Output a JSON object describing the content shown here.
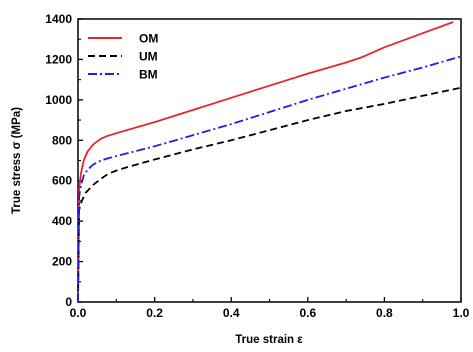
{
  "chart_data": {
    "type": "line",
    "xlabel": "True strain ε",
    "ylabel": "True stress σ (MPa)",
    "xlim": [
      0.0,
      1.0
    ],
    "ylim": [
      0,
      1400
    ],
    "x_ticks": [
      "0.0",
      "0.2",
      "0.4",
      "0.6",
      "0.8",
      "1.0"
    ],
    "y_ticks": [
      "0",
      "200",
      "400",
      "600",
      "800",
      "1000",
      "1200",
      "1400"
    ],
    "grid": false,
    "legend_position": "top-left",
    "series": [
      {
        "name": "OM",
        "color": "#e8262a",
        "dash": "solid",
        "x": [
          0.0,
          0.003,
          0.008,
          0.015,
          0.025,
          0.04,
          0.06,
          0.075,
          0.1,
          0.2,
          0.3,
          0.4,
          0.5,
          0.6,
          0.7,
          0.74,
          0.8,
          0.9,
          0.98
        ],
        "y": [
          0,
          560,
          640,
          700,
          745,
          780,
          808,
          820,
          835,
          890,
          950,
          1010,
          1070,
          1130,
          1185,
          1210,
          1260,
          1330,
          1385
        ]
      },
      {
        "name": "UM",
        "color": "#000000",
        "dash": "dashed",
        "x": [
          0.0,
          0.003,
          0.01,
          0.02,
          0.04,
          0.06,
          0.08,
          0.1,
          0.13,
          0.2,
          0.3,
          0.4,
          0.5,
          0.6,
          0.7,
          0.8,
          0.9,
          1.0
        ],
        "y": [
          0,
          455,
          500,
          540,
          580,
          610,
          635,
          650,
          668,
          705,
          755,
          800,
          850,
          900,
          945,
          980,
          1020,
          1060
        ]
      },
      {
        "name": "BM",
        "color": "#1f1fe6",
        "dash": "dashdot",
        "x": [
          0.0,
          0.003,
          0.008,
          0.015,
          0.025,
          0.04,
          0.06,
          0.08,
          0.1,
          0.2,
          0.3,
          0.4,
          0.5,
          0.6,
          0.7,
          0.8,
          0.9,
          1.0
        ],
        "y": [
          0,
          520,
          580,
          625,
          655,
          680,
          700,
          712,
          722,
          770,
          825,
          880,
          940,
          1000,
          1055,
          1110,
          1160,
          1215
        ]
      }
    ]
  }
}
